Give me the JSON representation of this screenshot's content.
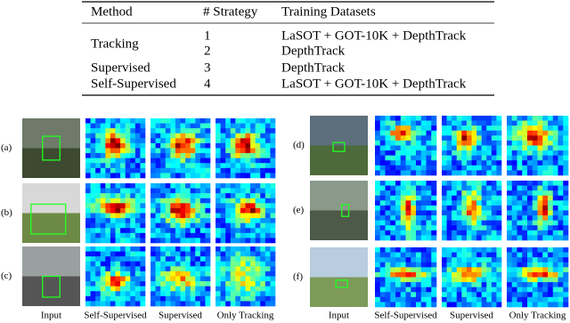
{
  "table": {
    "header": [
      "Method",
      "# Strategy",
      "Training Datasets"
    ],
    "groups": [
      {
        "method": "Tracking",
        "rows": [
          {
            "strategy": 1,
            "datasets": "LaSOT + GOT-10K + DepthTrack"
          },
          {
            "strategy": 2,
            "datasets": "DepthTrack"
          }
        ]
      },
      {
        "method": "Supervised",
        "rows": [
          {
            "strategy": 3,
            "datasets": "DepthTrack"
          }
        ]
      },
      {
        "method": "Self-Supervised",
        "rows": [
          {
            "strategy": 4,
            "datasets": "LaSOT + GOT-10K + DepthTrack"
          }
        ]
      }
    ]
  },
  "figure": {
    "left": {
      "rows": [
        "(a)",
        "(b)",
        "(c)"
      ],
      "columns": [
        "Input",
        "Self-Supervised",
        "Supervised",
        "Only Tracking"
      ]
    },
    "right": {
      "rows": [
        "(d)",
        "(e)",
        "(f)"
      ],
      "columns": [
        "Input",
        "Self-Supervised",
        "Supervised",
        "Only Tracking"
      ]
    }
  }
}
